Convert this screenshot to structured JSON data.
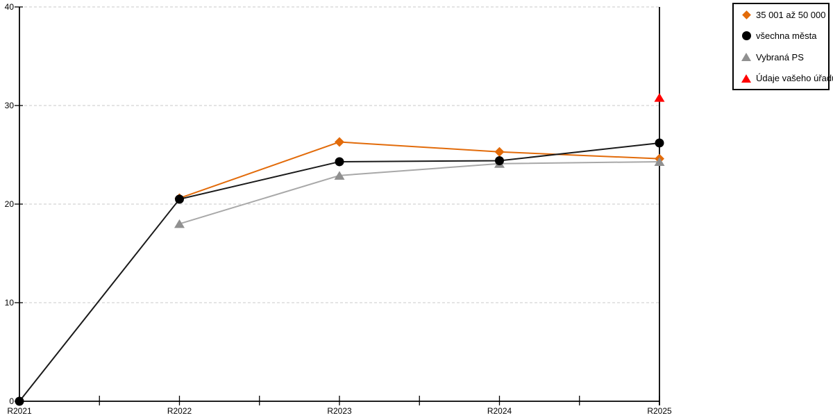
{
  "chart_data": {
    "type": "line",
    "categories": [
      "R2021",
      "R2022",
      "R2023",
      "R2024",
      "R2025"
    ],
    "series": [
      {
        "name": "35 001 až 50 000",
        "color": "#E26B0A",
        "marker": "diamond",
        "marker_color": "#E26B0A",
        "values": [
          null,
          20.6,
          26.3,
          25.3,
          24.6
        ]
      },
      {
        "name": "všechna města",
        "color": "#1A1A1A",
        "marker": "circle",
        "marker_color": "#000000",
        "values": [
          0,
          20.5,
          24.3,
          24.4,
          26.2
        ]
      },
      {
        "name": "Vybraná PS",
        "color": "#A8A8A8",
        "marker": "triangle",
        "marker_color": "#909090",
        "values": [
          null,
          18.0,
          22.9,
          24.1,
          24.3
        ]
      },
      {
        "name": "Údaje vašeho úřadu",
        "color": "#FF0000",
        "marker": "triangle",
        "marker_color": "#FF0000",
        "values": [
          null,
          null,
          null,
          null,
          30.8
        ]
      }
    ],
    "y_ticks": [
      0,
      10,
      20,
      30,
      40
    ],
    "ylim": [
      0,
      40
    ],
    "title": "",
    "xlabel": "",
    "ylabel": "",
    "grid": "horizontal-dashed",
    "gridline_color": "#C9C9C9",
    "axis_color": "#000000",
    "legend_position": "top-right"
  }
}
